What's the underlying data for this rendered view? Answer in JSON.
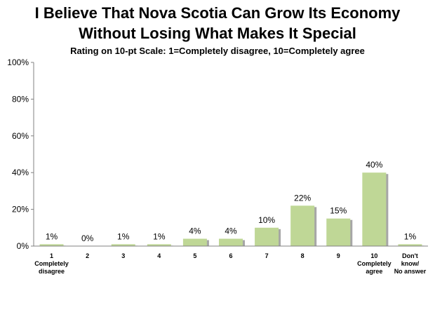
{
  "title_line1": "I Believe That Nova Scotia Can Grow Its Economy",
  "title_line2": "Without Losing What Makes It Special",
  "subtitle": "Rating on 10-pt Scale:  1=Completely disagree, 10=Completely agree",
  "colors": {
    "bar": "#bfd796",
    "bar_shadow": "#a6a6a6",
    "axis": "#808080"
  },
  "chart_data": {
    "type": "bar",
    "title": "I Believe That Nova Scotia Can Grow Its Economy Without Losing What Makes It Special",
    "subtitle": "Rating on 10-pt Scale:  1=Completely disagree, 10=Completely agree",
    "categories": [
      [
        "1",
        "Completely",
        "disagree"
      ],
      [
        "2"
      ],
      [
        "3"
      ],
      [
        "4"
      ],
      [
        "5"
      ],
      [
        "6"
      ],
      [
        "7"
      ],
      [
        "8"
      ],
      [
        "9"
      ],
      [
        "10",
        "Completely",
        "agree"
      ],
      [
        "Don't",
        "know/",
        "No answer"
      ]
    ],
    "values": [
      1,
      0,
      1,
      1,
      4,
      4,
      10,
      22,
      15,
      40,
      1
    ],
    "data_labels": [
      "1%",
      "0%",
      "1%",
      "1%",
      "4%",
      "4%",
      "10%",
      "22%",
      "15%",
      "40%",
      "1%"
    ],
    "y_ticks": [
      0,
      20,
      40,
      60,
      80,
      100
    ],
    "y_tick_labels": [
      "0%",
      "20%",
      "40%",
      "60%",
      "80%",
      "100%"
    ],
    "ylim": [
      0,
      100
    ],
    "xlabel": "",
    "ylabel": "",
    "grid": false,
    "legend": "none"
  }
}
